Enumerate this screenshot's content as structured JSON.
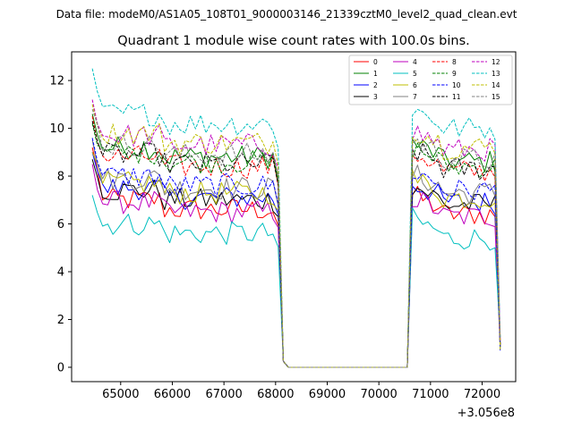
{
  "suptitle": "Data file: modeM0/AS1A05_108T01_9000003146_21339cztM0_level2_quad_clean.evt",
  "chart_data": {
    "type": "line",
    "title": "Quadrant 1 module wise count rates with 100.0s bins.",
    "xlabel": "",
    "ylabel": "",
    "x_offset_label": "+3.056e8",
    "x_offset": 305600000,
    "xlim": [
      64050,
      72650
    ],
    "ylim": [
      -0.6,
      13.2
    ],
    "xticks": [
      65000,
      66000,
      67000,
      68000,
      69000,
      70000,
      71000,
      72000
    ],
    "xtick_labels": [
      "65000",
      "66000",
      "67000",
      "68000",
      "69000",
      "70000",
      "71000",
      "72000"
    ],
    "yticks": [
      0,
      2,
      4,
      6,
      8,
      10,
      12
    ],
    "ytick_labels": [
      "0",
      "2",
      "4",
      "6",
      "8",
      "10",
      "12"
    ],
    "legend_position": "top-right",
    "segments": [
      {
        "start": 64450,
        "count": 37
      },
      {
        "start": 68150,
        "count": 24
      },
      {
        "start": 70550,
        "count": 19
      }
    ],
    "series": [
      {
        "name": "0",
        "color": "#ff0000",
        "dashed": false,
        "level": 6.6,
        "start": 9.2
      },
      {
        "name": "1",
        "color": "#008000",
        "dashed": false,
        "level": 8.8,
        "start": 10.6
      },
      {
        "name": "2",
        "color": "#0000ff",
        "dashed": false,
        "level": 7.1,
        "start": 9.0
      },
      {
        "name": "3",
        "color": "#000000",
        "dashed": false,
        "level": 7.0,
        "start": 8.7
      },
      {
        "name": "4",
        "color": "#bf00bf",
        "dashed": false,
        "level": 6.5,
        "start": 8.5
      },
      {
        "name": "5",
        "color": "#00bfbf",
        "dashed": false,
        "level": 5.6,
        "start": 7.2
      },
      {
        "name": "6",
        "color": "#bfbf00",
        "dashed": false,
        "level": 7.3,
        "start": 9.0
      },
      {
        "name": "7",
        "color": "#808080",
        "dashed": false,
        "level": 7.5,
        "start": 9.5
      },
      {
        "name": "8",
        "color": "#ff0000",
        "dashed": true,
        "level": 8.4,
        "start": 10.5
      },
      {
        "name": "9",
        "color": "#008000",
        "dashed": true,
        "level": 8.6,
        "start": 10.2
      },
      {
        "name": "10",
        "color": "#0000ff",
        "dashed": true,
        "level": 7.6,
        "start": 9.6
      },
      {
        "name": "11",
        "color": "#000000",
        "dashed": true,
        "level": 8.5,
        "start": 10.3
      },
      {
        "name": "12",
        "color": "#bf00bf",
        "dashed": true,
        "level": 9.3,
        "start": 11.2
      },
      {
        "name": "13",
        "color": "#00bfbf",
        "dashed": true,
        "level": 10.2,
        "start": 12.5
      },
      {
        "name": "14",
        "color": "#bfbf00",
        "dashed": true,
        "level": 9.4,
        "start": 11.0
      },
      {
        "name": "15",
        "color": "#808080",
        "dashed": true,
        "level": 8.9,
        "start": 10.8
      }
    ]
  }
}
